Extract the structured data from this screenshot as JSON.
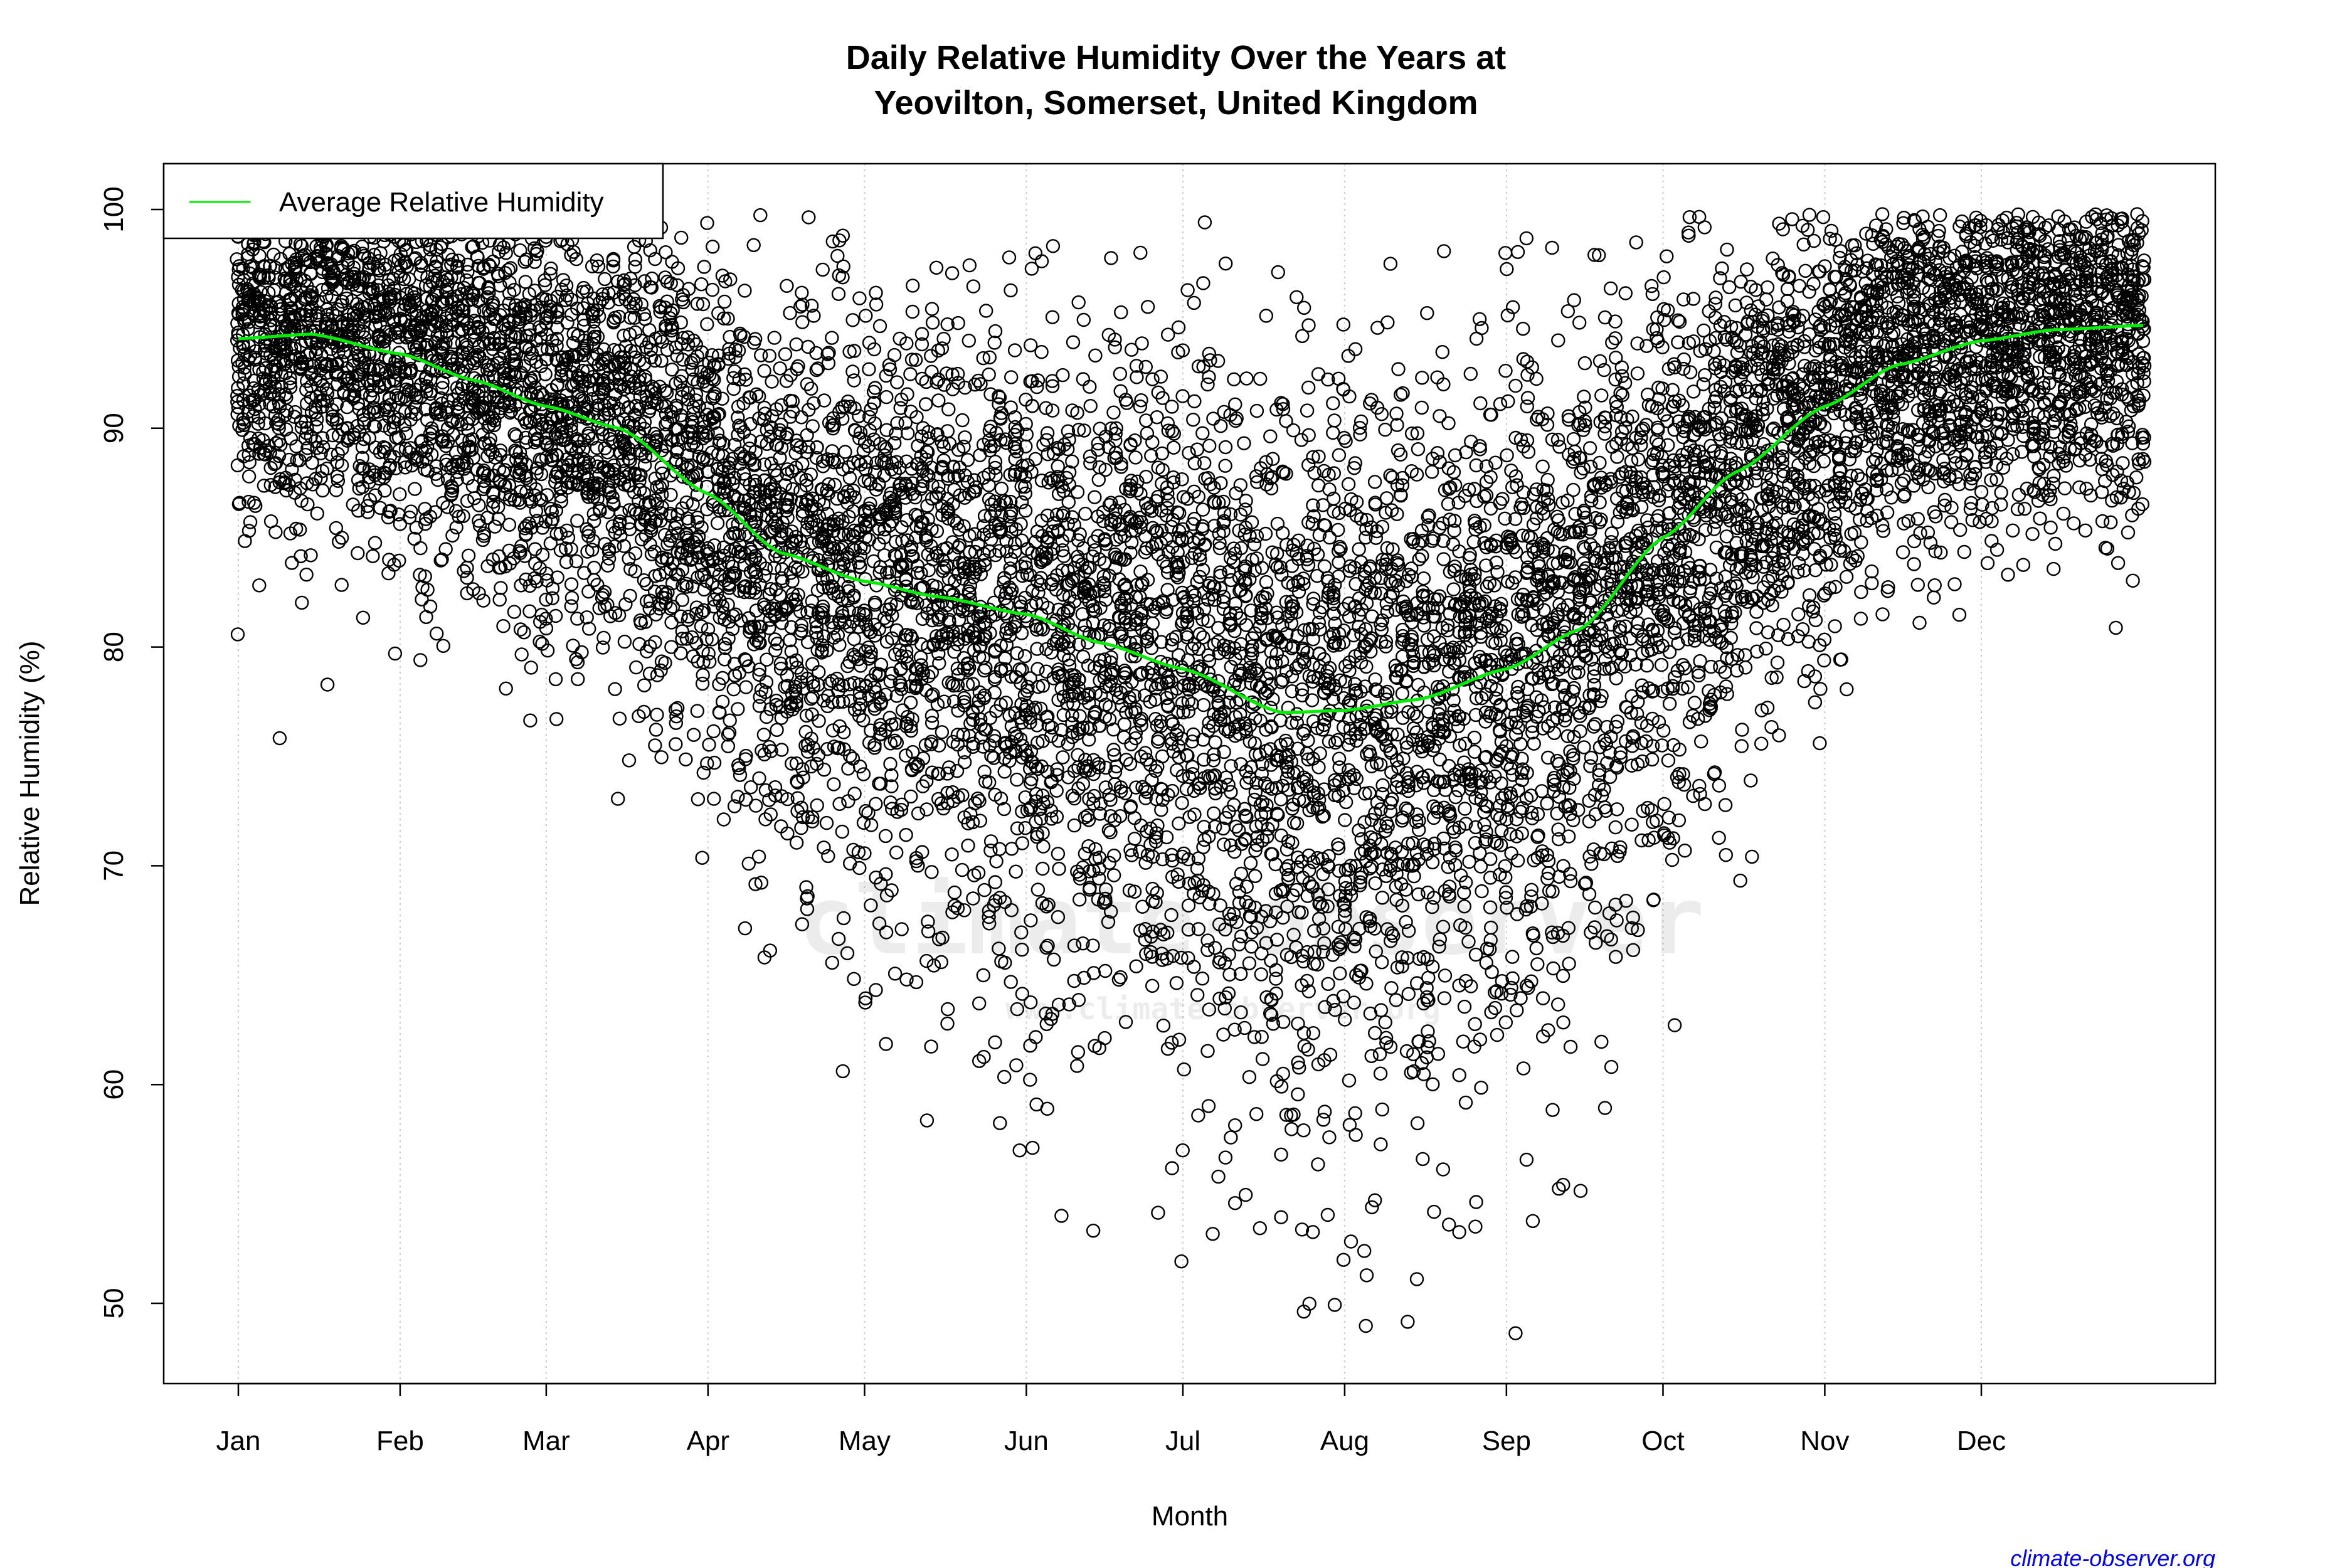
{
  "chart_data": {
    "type": "scatter",
    "title": "Daily Relative Humidity Over the Years at",
    "subtitle": "Yeovilton, Somerset, United Kingdom",
    "xlabel": "Month",
    "ylabel": "Relative Humidity  (%)",
    "x_tick_labels": [
      "Jan",
      "Feb",
      "Mar",
      "Apr",
      "May",
      "Jun",
      "Jul",
      "Aug",
      "Sep",
      "Oct",
      "Nov",
      "Dec"
    ],
    "x_tick_days": [
      1,
      32,
      60,
      91,
      121,
      152,
      182,
      213,
      244,
      274,
      305,
      335
    ],
    "xlim": [
      1,
      366
    ],
    "y_ticks": [
      50,
      60,
      70,
      80,
      90,
      100
    ],
    "ylim": [
      46.5,
      102.5
    ],
    "grid": "vertical dotted at month starts",
    "legend": {
      "position": "top-left",
      "entries": [
        {
          "name": "Average Relative Humidity",
          "color": "#00ee00"
        }
      ]
    },
    "series": [
      {
        "name": "Average Relative Humidity",
        "kind": "line",
        "color": "#00ee00",
        "points": [
          [
            1,
            94.1
          ],
          [
            15,
            94.3
          ],
          [
            32,
            93.4
          ],
          [
            46,
            92.2
          ],
          [
            60,
            91.0
          ],
          [
            74,
            90.0
          ],
          [
            91,
            87.0
          ],
          [
            105,
            84.3
          ],
          [
            121,
            83.0
          ],
          [
            135,
            82.3
          ],
          [
            152,
            81.5
          ],
          [
            166,
            80.2
          ],
          [
            182,
            79.0
          ],
          [
            201,
            77.0
          ],
          [
            213,
            77.1
          ],
          [
            227,
            77.6
          ],
          [
            244,
            79.0
          ],
          [
            258,
            80.8
          ],
          [
            274,
            85.0
          ],
          [
            288,
            88.0
          ],
          [
            305,
            91.0
          ],
          [
            319,
            92.9
          ],
          [
            335,
            94.0
          ],
          [
            349,
            94.5
          ],
          [
            366,
            94.7
          ]
        ]
      },
      {
        "kind": "scatter",
        "marker": "open-circle",
        "color": "#000000"
      }
    ],
    "watermark": [
      "climate-observer",
      "www.climate-observer.org"
    ]
  },
  "credit": "climate-observer.org"
}
